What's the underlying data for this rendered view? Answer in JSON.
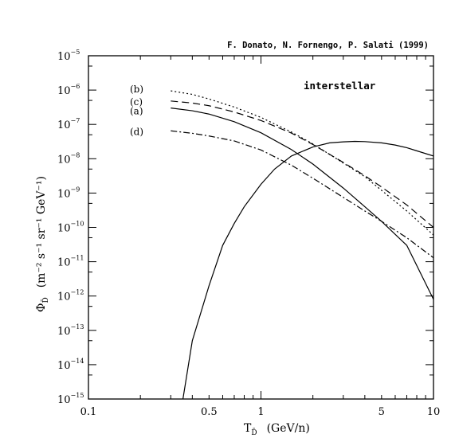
{
  "chart_data": {
    "type": "line",
    "title": "",
    "annotation": "F. Donato, N. Fornengo, P. Salati (1999)",
    "panel_label": "interstellar",
    "x_scale": "log",
    "y_scale": "log",
    "xlim": [
      0.1,
      10
    ],
    "ylim": [
      1e-15,
      1e-05
    ],
    "x_ticks": [
      {
        "value": 0.1,
        "label": "0.1"
      },
      {
        "value": 0.5,
        "label": "0.5"
      },
      {
        "value": 1,
        "label": "1"
      },
      {
        "value": 5,
        "label": "5"
      },
      {
        "value": 10,
        "label": "10"
      }
    ],
    "y_ticks": [
      {
        "value": 1e-15,
        "base": "10",
        "exp": "−15"
      },
      {
        "value": 1e-14,
        "base": "10",
        "exp": "−14"
      },
      {
        "value": 1e-13,
        "base": "10",
        "exp": "−13"
      },
      {
        "value": 1e-12,
        "base": "10",
        "exp": "−12"
      },
      {
        "value": 1e-11,
        "base": "10",
        "exp": "−11"
      },
      {
        "value": 1e-10,
        "base": "10",
        "exp": "−10"
      },
      {
        "value": 1e-09,
        "base": "10",
        "exp": "−9"
      },
      {
        "value": 1e-08,
        "base": "10",
        "exp": "−8"
      },
      {
        "value": 1e-07,
        "base": "10",
        "exp": "−7"
      },
      {
        "value": 1e-06,
        "base": "10",
        "exp": "−6"
      },
      {
        "value": 1e-05,
        "base": "10",
        "exp": "−5"
      }
    ],
    "xlabel": {
      "main": "T",
      "sub": "D̄",
      "unit": "(GeV/n)"
    },
    "ylabel": {
      "main": "Φ",
      "sub": "D̄",
      "unit": "(m⁻² s⁻¹ sr⁻¹ GeV⁻¹)"
    },
    "series": [
      {
        "label": "(b)",
        "style": "dotted",
        "x": [
          0.3,
          0.4,
          0.5,
          0.7,
          1.0,
          1.5,
          2.0,
          3.0,
          4.0,
          5.0,
          7.0,
          10.0
        ],
        "y": [
          9.5e-07,
          7.5e-07,
          5.5e-07,
          3.2e-07,
          1.6e-07,
          6e-08,
          2.7e-08,
          7.5e-09,
          3e-09,
          1.2e-09,
          3e-10,
          6e-11
        ]
      },
      {
        "label": "(c)",
        "style": "dashed",
        "x": [
          0.3,
          0.4,
          0.5,
          0.7,
          1.0,
          1.5,
          2.0,
          3.0,
          4.0,
          5.0,
          7.0,
          10.0
        ],
        "y": [
          4.8e-07,
          4.2e-07,
          3.5e-07,
          2.3e-07,
          1.3e-07,
          5.6e-08,
          2.6e-08,
          7.8e-09,
          3.2e-09,
          1.5e-09,
          4.5e-10,
          1e-10
        ]
      },
      {
        "label": "(a)",
        "style": "solid",
        "x": [
          0.3,
          0.4,
          0.5,
          0.7,
          1.0,
          1.5,
          2.0,
          3.0,
          4.0,
          5.0,
          7.0,
          10.0
        ],
        "y": [
          3e-07,
          2.5e-07,
          2e-07,
          1.2e-07,
          5.7e-08,
          1.85e-08,
          7e-09,
          1.4e-09,
          4e-10,
          1.5e-10,
          3e-11,
          8e-13
        ]
      },
      {
        "label": "(d)",
        "style": "dashdot",
        "x": [
          0.3,
          0.4,
          0.5,
          0.7,
          1.0,
          1.5,
          2.0,
          3.0,
          4.0,
          5.0,
          7.0,
          10.0
        ],
        "y": [
          6.5e-08,
          5.5e-08,
          4.6e-08,
          3.3e-08,
          1.8e-08,
          6.5e-09,
          2.7e-09,
          7.5e-10,
          3e-10,
          1.5e-10,
          5e-11,
          1.3e-11
        ]
      },
      {
        "label": "",
        "style": "solid",
        "x": [
          0.353,
          0.4,
          0.5,
          0.6,
          0.7,
          0.8,
          1.0,
          1.2,
          1.5,
          2.0,
          2.5,
          3.0,
          3.5,
          4.0,
          5.0,
          6.0,
          7.0,
          8.0,
          10.0
        ],
        "y": [
          1e-15,
          5e-14,
          2e-12,
          3e-11,
          1.3e-10,
          4e-10,
          1.8e-09,
          5e-09,
          1.2e-08,
          2.2e-08,
          2.9e-08,
          3.1e-08,
          3.2e-08,
          3.15e-08,
          2.9e-08,
          2.5e-08,
          2.1e-08,
          1.7e-08,
          1.2e-08
        ]
      }
    ]
  }
}
